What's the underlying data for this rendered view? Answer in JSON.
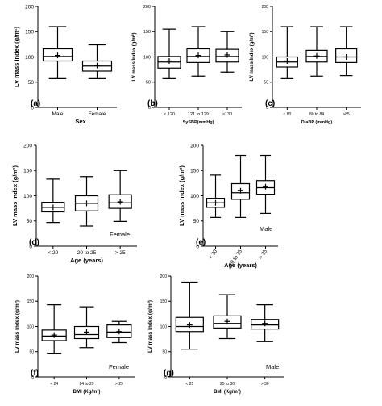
{
  "chart_data": [
    {
      "id": "a",
      "type": "boxplot",
      "panel_label": "(a)",
      "ylabel": "LV mass index (g/m²)",
      "xlabel": "Sex",
      "ylim": [
        0,
        200
      ],
      "yticks": [
        0,
        50,
        100,
        150,
        200
      ],
      "categories": [
        "Male",
        "Female"
      ],
      "boxes": [
        {
          "min": 57,
          "q1": 92,
          "median": 101,
          "q3": 116,
          "max": 160,
          "mean": 103
        },
        {
          "min": 57,
          "q1": 72,
          "median": 82,
          "q3": 92,
          "max": 124,
          "mean": 83
        }
      ],
      "annotation": ""
    },
    {
      "id": "b",
      "type": "boxplot",
      "panel_label": "(b)",
      "ylabel": "LV mass Index (g/m²)",
      "xlabel": "SySBP(mmHg)",
      "ylim": [
        0,
        200
      ],
      "yticks": [
        0,
        50,
        100,
        150,
        200
      ],
      "categories": [
        "< 120",
        "121 to 129",
        "≥130"
      ],
      "boxes": [
        {
          "min": 57,
          "q1": 78,
          "median": 90,
          "q3": 101,
          "max": 155,
          "mean": 92
        },
        {
          "min": 62,
          "q1": 89,
          "median": 101,
          "q3": 116,
          "max": 160,
          "mean": 103
        },
        {
          "min": 70,
          "q1": 90,
          "median": 101,
          "q3": 115,
          "max": 150,
          "mean": 104
        }
      ],
      "annotation": ""
    },
    {
      "id": "c",
      "type": "boxplot",
      "panel_label": "(c)",
      "ylabel": "LV mass Index (g/m²)",
      "xlabel": "DiaBP (mmHg)",
      "ylim": [
        0,
        200
      ],
      "yticks": [
        0,
        50,
        100,
        150,
        200
      ],
      "categories": [
        "< 80",
        "80 to 84",
        "≥85"
      ],
      "boxes": [
        {
          "min": 57,
          "q1": 80,
          "median": 90,
          "q3": 100,
          "max": 160,
          "mean": 92
        },
        {
          "min": 62,
          "q1": 90,
          "median": 101,
          "q3": 113,
          "max": 160,
          "mean": 102
        },
        {
          "min": 63,
          "q1": 89,
          "median": 100,
          "q3": 116,
          "max": 160,
          "mean": 100
        }
      ],
      "annotation": ""
    },
    {
      "id": "d",
      "type": "boxplot",
      "panel_label": "(d)",
      "ylabel": "LV mass Index (g/m²)",
      "xlabel": "Age (years)",
      "ylim": [
        0,
        200
      ],
      "yticks": [
        0,
        50,
        100,
        150,
        200
      ],
      "categories": [
        "< 20",
        "20 to 25",
        "> 25"
      ],
      "boxes": [
        {
          "min": 47,
          "q1": 68,
          "median": 77,
          "q3": 87,
          "max": 133,
          "mean": 77
        },
        {
          "min": 40,
          "q1": 70,
          "median": 85,
          "q3": 100,
          "max": 138,
          "mean": 85
        },
        {
          "min": 49,
          "q1": 75,
          "median": 86,
          "q3": 102,
          "max": 150,
          "mean": 88
        }
      ],
      "annotation": "Female"
    },
    {
      "id": "e",
      "type": "boxplot",
      "panel_label": "(e)",
      "ylabel": "LV mass Index (g/m²)",
      "xlabel": "Age (years)",
      "ylim": [
        0,
        200
      ],
      "yticks": [
        0,
        50,
        100,
        150,
        200
      ],
      "categories": [
        "< 20",
        "20 to 25",
        "> 25"
      ],
      "boxes": [
        {
          "min": 57,
          "q1": 77,
          "median": 86,
          "q3": 95,
          "max": 141,
          "mean": 86
        },
        {
          "min": 57,
          "q1": 93,
          "median": 106,
          "q3": 124,
          "max": 180,
          "mean": 110
        },
        {
          "min": 65,
          "q1": 103,
          "median": 116,
          "q3": 130,
          "max": 180,
          "mean": 118
        }
      ],
      "annotation": "Male"
    },
    {
      "id": "f",
      "type": "boxplot",
      "panel_label": "(f)",
      "ylabel": "LV mass Index (g/m²)",
      "xlabel": "BMI (Kg/m²)",
      "ylim": [
        0,
        200
      ],
      "yticks": [
        0,
        50,
        100,
        150,
        200
      ],
      "categories": [
        "< 24",
        "24 to 29",
        "> 29"
      ],
      "boxes": [
        {
          "min": 47,
          "q1": 72,
          "median": 81,
          "q3": 93,
          "max": 143,
          "mean": 83
        },
        {
          "min": 58,
          "q1": 76,
          "median": 84,
          "q3": 100,
          "max": 139,
          "mean": 89
        },
        {
          "min": 68,
          "q1": 78,
          "median": 89,
          "q3": 103,
          "max": 110,
          "mean": 90
        }
      ],
      "annotation": "Female"
    },
    {
      "id": "g",
      "type": "boxplot",
      "panel_label": "(g)",
      "ylabel": "LV mass Index (g/m²)",
      "xlabel": "BMI (Kg/m²)",
      "ylim": [
        0,
        200
      ],
      "yticks": [
        0,
        50,
        100,
        150,
        200
      ],
      "categories": [
        "< 25",
        "25 to 30",
        "> 30"
      ],
      "boxes": [
        {
          "min": 55,
          "q1": 90,
          "median": 100,
          "q3": 118,
          "max": 188,
          "mean": 103
        },
        {
          "min": 76,
          "q1": 97,
          "median": 106,
          "q3": 121,
          "max": 163,
          "mean": 110
        },
        {
          "min": 70,
          "q1": 95,
          "median": 103,
          "q3": 114,
          "max": 143,
          "mean": 106
        }
      ],
      "annotation": "Male"
    }
  ]
}
